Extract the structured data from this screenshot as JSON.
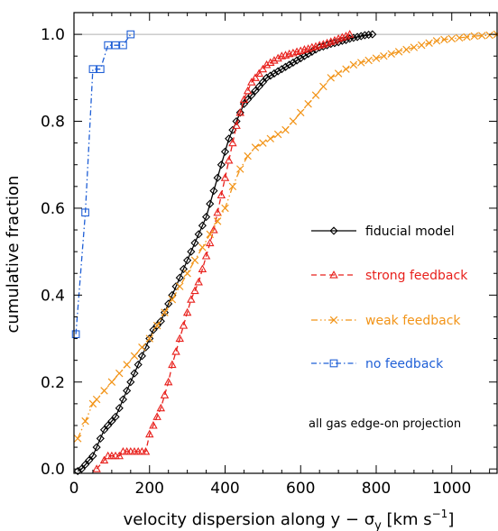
{
  "chart_data": {
    "type": "line",
    "xlabel": "velocity dispersion along y − σ",
    "xlabel_sub": "y",
    "xlabel_units_open": " [km s",
    "xlabel_units_exp": "−1",
    "xlabel_units_close": "]",
    "ylabel": "cumulative fraction",
    "xlim": [
      0,
      1120
    ],
    "ylim": [
      -0.01,
      1.05
    ],
    "xticks": [
      "0",
      "200",
      "400",
      "600",
      "800",
      "1000"
    ],
    "yticks": [
      "0.0",
      "0.2",
      "0.4",
      "0.6",
      "0.8",
      "1.0"
    ],
    "reference_line_y": 1.0,
    "annotation": "all gas edge-on projection",
    "legend_position": "center-right",
    "series": [
      {
        "name": "fiducial model",
        "color": "#000000",
        "marker": "diamond",
        "dash": "solid",
        "x": [
          10,
          20,
          30,
          40,
          50,
          60,
          70,
          80,
          90,
          100,
          110,
          120,
          130,
          140,
          150,
          160,
          170,
          180,
          190,
          200,
          210,
          220,
          230,
          240,
          250,
          260,
          270,
          280,
          290,
          300,
          310,
          320,
          330,
          340,
          350,
          360,
          370,
          380,
          390,
          400,
          410,
          420,
          430,
          440,
          450,
          460,
          470,
          480,
          490,
          500,
          510,
          520,
          530,
          540,
          550,
          560,
          570,
          580,
          590,
          600,
          610,
          620,
          630,
          640,
          650,
          660,
          670,
          680,
          690,
          700,
          710,
          720,
          730,
          740,
          750,
          760,
          770,
          780,
          790
        ],
        "y": [
          -0.005,
          0.0,
          0.01,
          0.02,
          0.03,
          0.05,
          0.07,
          0.09,
          0.1,
          0.11,
          0.12,
          0.14,
          0.16,
          0.18,
          0.2,
          0.22,
          0.24,
          0.26,
          0.28,
          0.3,
          0.32,
          0.33,
          0.34,
          0.36,
          0.38,
          0.4,
          0.42,
          0.44,
          0.46,
          0.48,
          0.5,
          0.52,
          0.54,
          0.56,
          0.58,
          0.61,
          0.64,
          0.67,
          0.7,
          0.73,
          0.76,
          0.78,
          0.8,
          0.82,
          0.84,
          0.85,
          0.86,
          0.87,
          0.88,
          0.89,
          0.9,
          0.905,
          0.91,
          0.915,
          0.92,
          0.925,
          0.93,
          0.935,
          0.94,
          0.945,
          0.95,
          0.955,
          0.96,
          0.965,
          0.97,
          0.972,
          0.975,
          0.978,
          0.98,
          0.982,
          0.985,
          0.987,
          0.99,
          0.992,
          0.994,
          0.996,
          0.998,
          0.999,
          1.0
        ]
      },
      {
        "name": "strong feedback",
        "color": "#e8201c",
        "marker": "triangle",
        "dash": "dashed",
        "x": [
          60,
          80,
          90,
          100,
          110,
          120,
          130,
          140,
          150,
          160,
          170,
          180,
          190,
          200,
          210,
          220,
          230,
          240,
          250,
          260,
          270,
          280,
          290,
          300,
          310,
          320,
          330,
          340,
          350,
          360,
          370,
          380,
          390,
          400,
          410,
          420,
          430,
          440,
          450,
          460,
          470,
          480,
          490,
          500,
          510,
          520,
          530,
          540,
          550,
          560,
          570,
          580,
          590,
          600,
          610,
          620,
          630,
          640,
          650,
          660,
          670,
          680,
          690,
          700,
          710,
          720,
          730
        ],
        "y": [
          0.0,
          0.02,
          0.03,
          0.03,
          0.03,
          0.03,
          0.04,
          0.04,
          0.04,
          0.04,
          0.04,
          0.04,
          0.04,
          0.08,
          0.1,
          0.12,
          0.14,
          0.17,
          0.2,
          0.24,
          0.27,
          0.3,
          0.33,
          0.36,
          0.39,
          0.41,
          0.43,
          0.46,
          0.49,
          0.52,
          0.55,
          0.59,
          0.63,
          0.67,
          0.71,
          0.75,
          0.79,
          0.82,
          0.85,
          0.87,
          0.89,
          0.9,
          0.91,
          0.92,
          0.93,
          0.935,
          0.94,
          0.945,
          0.95,
          0.952,
          0.955,
          0.957,
          0.96,
          0.962,
          0.965,
          0.967,
          0.97,
          0.972,
          0.975,
          0.977,
          0.98,
          0.983,
          0.986,
          0.99,
          0.993,
          0.996,
          1.0
        ]
      },
      {
        "name": "weak feedback",
        "color": "#f29418",
        "marker": "x",
        "dash": "dashdotdot",
        "x": [
          10,
          30,
          50,
          60,
          80,
          100,
          120,
          140,
          160,
          180,
          200,
          220,
          240,
          260,
          280,
          300,
          320,
          340,
          360,
          380,
          400,
          420,
          440,
          460,
          480,
          500,
          520,
          540,
          560,
          580,
          600,
          620,
          640,
          660,
          680,
          700,
          720,
          740,
          760,
          780,
          800,
          820,
          840,
          860,
          880,
          900,
          920,
          940,
          960,
          980,
          1000,
          1020,
          1040,
          1060,
          1080,
          1100,
          1120
        ],
        "y": [
          0.07,
          0.11,
          0.15,
          0.16,
          0.18,
          0.2,
          0.22,
          0.24,
          0.26,
          0.28,
          0.3,
          0.33,
          0.36,
          0.39,
          0.42,
          0.45,
          0.48,
          0.51,
          0.54,
          0.57,
          0.6,
          0.65,
          0.69,
          0.72,
          0.74,
          0.75,
          0.76,
          0.77,
          0.78,
          0.8,
          0.82,
          0.84,
          0.86,
          0.88,
          0.9,
          0.91,
          0.92,
          0.93,
          0.935,
          0.94,
          0.945,
          0.95,
          0.955,
          0.96,
          0.965,
          0.97,
          0.975,
          0.98,
          0.985,
          0.988,
          0.99,
          0.992,
          0.994,
          0.996,
          0.997,
          0.998,
          1.0
        ]
      },
      {
        "name": "no feedback",
        "color": "#1f5fd6",
        "marker": "square",
        "dash": "dashdot",
        "x": [
          5,
          30,
          50,
          70,
          90,
          110,
          130,
          150
        ],
        "y": [
          0.31,
          0.59,
          0.92,
          0.92,
          0.975,
          0.975,
          0.975,
          1.0
        ]
      }
    ]
  }
}
